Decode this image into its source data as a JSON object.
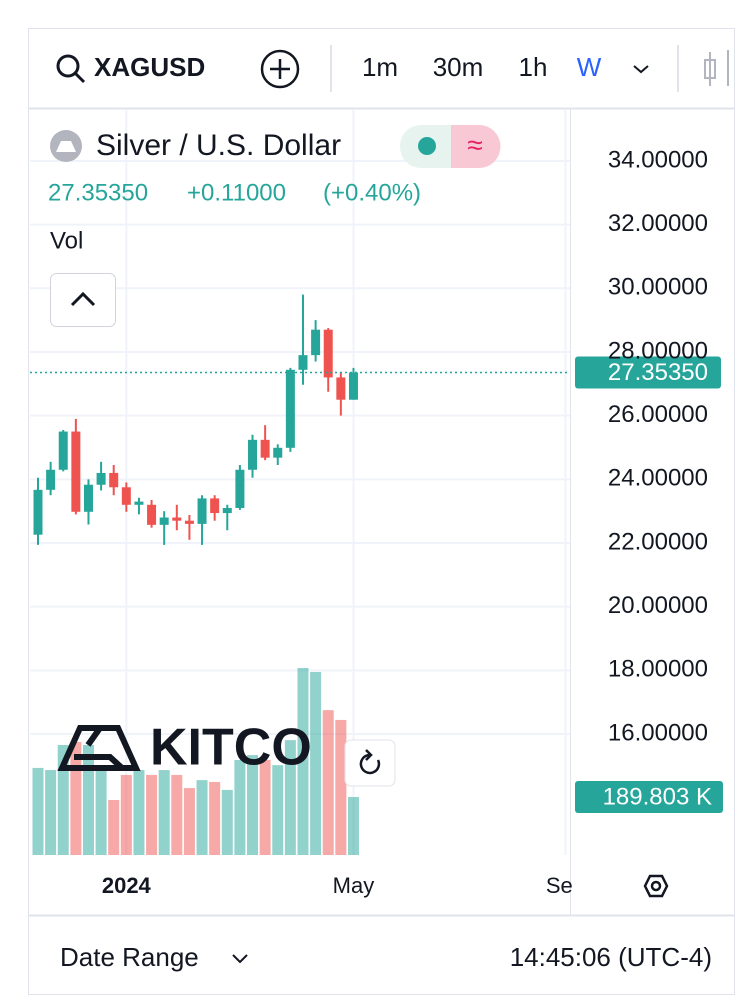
{
  "toolbar": {
    "symbol": "XAGUSD",
    "intervals": [
      "1m",
      "30m",
      "1h",
      "W"
    ]
  },
  "legend": {
    "title": "Silver / U.S. Dollar",
    "last": "27.35350",
    "change": "+0.11000",
    "change_pct": "(+0.40%)",
    "volume_label": "Vol"
  },
  "watermark": "KITCO",
  "chart_data": {
    "type": "candlestick",
    "open": [
      22.26,
      23.67,
      24.3,
      25.5,
      22.98,
      23.83,
      24.2,
      23.75,
      23.2,
      23.2,
      22.57,
      22.8,
      22.7,
      22.6,
      23.4,
      22.94,
      23.1,
      24.3,
      25.24,
      24.68,
      24.99,
      27.44,
      27.9,
      28.7,
      27.2,
      26.5
    ],
    "high": [
      24.05,
      24.55,
      25.55,
      25.9,
      24.0,
      24.55,
      24.45,
      23.9,
      23.42,
      23.35,
      23.0,
      23.2,
      22.88,
      23.5,
      23.5,
      23.2,
      24.45,
      25.4,
      25.7,
      25.1,
      27.5,
      29.8,
      29.0,
      28.75,
      27.37,
      27.5
    ],
    "low": [
      21.94,
      23.5,
      24.25,
      22.9,
      22.58,
      23.65,
      23.5,
      22.98,
      22.9,
      22.48,
      21.94,
      22.4,
      22.1,
      21.94,
      22.7,
      22.4,
      23.04,
      24.05,
      24.6,
      24.45,
      24.86,
      26.97,
      27.7,
      26.75,
      26.0,
      26.5
    ],
    "close": [
      23.67,
      24.3,
      25.5,
      22.98,
      23.83,
      24.2,
      23.75,
      23.2,
      23.3,
      22.57,
      22.8,
      22.7,
      22.6,
      23.4,
      22.94,
      23.1,
      24.3,
      25.24,
      24.68,
      24.99,
      27.44,
      27.9,
      28.7,
      27.2,
      26.5,
      27.3535
    ],
    "volume": [
      285,
      278,
      360,
      370,
      360,
      278,
      180,
      262,
      278,
      262,
      278,
      262,
      219,
      245,
      239,
      213,
      311,
      327,
      311,
      294,
      376,
      612,
      599,
      474,
      442,
      189.803
    ],
    "up_color": "#26a69a",
    "down_color": "#ef5350",
    "ylim": [
      12.2,
      35.6
    ],
    "yticks": [
      {
        "value": 16,
        "label": "16.00000"
      },
      {
        "value": 18,
        "label": "18.00000"
      },
      {
        "value": 20,
        "label": "20.00000"
      },
      {
        "value": 22,
        "label": "22.00000"
      },
      {
        "value": 24,
        "label": "24.00000"
      },
      {
        "value": 26,
        "label": "26.00000"
      },
      {
        "value": 28,
        "label": "28.00000"
      },
      {
        "value": 30,
        "label": "30.00000"
      },
      {
        "value": 32,
        "label": "32.00000"
      },
      {
        "value": 34,
        "label": "34.00000"
      }
    ],
    "xlim": [
      -0.634,
      42.16
    ],
    "xticks": [
      {
        "value": 7,
        "label": "2024"
      },
      {
        "value": 25,
        "label": "May"
      },
      {
        "value": 41.8,
        "label": "Sep"
      }
    ],
    "volume_ylim": [
      0,
      2438
    ],
    "last_price": {
      "value": 27.3535,
      "label": "27.35350"
    },
    "last_volume": {
      "value": 189.803,
      "label": "189.803 K"
    },
    "grid": true
  },
  "footer": {
    "date_range": "Date Range",
    "time": "14:45:06 (UTC-4)"
  }
}
